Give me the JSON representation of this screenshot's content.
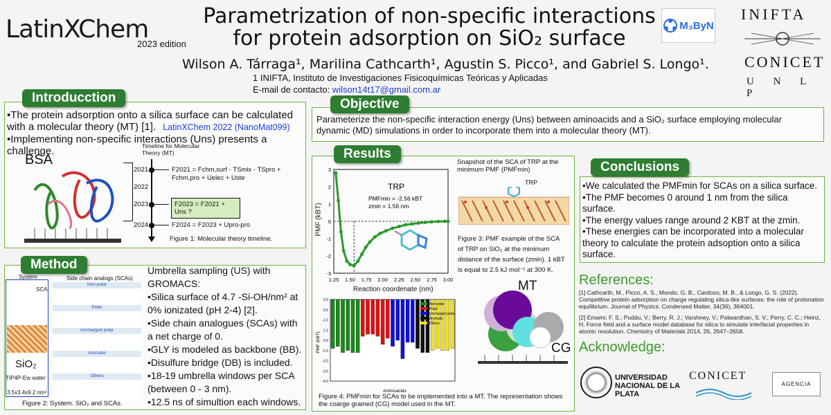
{
  "header": {
    "logo_text": "LatinXChem",
    "edition": "2023 edition",
    "title_line1": "Parametrization of non-specific interactions",
    "title_line2": "for protein adsorption on SiO₂ surface",
    "authors": "Wilson A. Tárraga¹, Marilina Cathcarth¹, Agustin S. Picco¹, and Gabriel S. Longo¹.",
    "affiliation": "1 INIFTA, Instituto de Investigaciones Fisicoquímicas Teóricas y Aplicadas",
    "contact_label": "E-mail de contacto:",
    "contact_email": "wilson14t17@gmail.com.ar",
    "m3byn_logo": "M₃ByN",
    "inifta_logo": "INIFTA",
    "conicet_logo": "CONICET",
    "unlp_logo": "U N L P"
  },
  "intro": {
    "tab": "Introducction",
    "bullet1": "•The protein adsorption onto a silica surface can be calculated with a molecular theory (MT) [1].",
    "link": "LatinXChem 2022 (NanoMat099)",
    "bullet2": "•Implementing non-specific interactions (Uns) presents a challenge.",
    "bsa_label": "BSA",
    "timeline_title": "Timeline for Molecular Theory (MT)",
    "years": [
      "2021",
      "2022",
      "2023",
      "2024"
    ],
    "eq2021": "F2021 = Fchm,surf - TSmix - TSpro + Fchm,pro + Uelec + Uste",
    "eq2023": "F2023 = F2021 + Uns ?",
    "eq2024": "F2024 = F2023 + Upro-pro",
    "caption": "Figure 1: Molecular theory timeline."
  },
  "objective": {
    "tab": "Objective",
    "text": "Parameterize the non-specific interaction energy (Uns) between aminoacids and a SiO₂ surface employing molecular dynamic (MD) simulations in order to incorporate them into a molecular theory (MT)."
  },
  "results": {
    "tab": "Results",
    "snapshot_caption": "Snapshot of the SCA of TRP at the minimum PMF (PMFmin)",
    "trp_label": "TRP",
    "fig3_caption": "Figure 3: PMF example of the SCA of TRP on SiO₂ at the minimum distance of the surface (zmin). 1 kBT is equal to 2.5 kJ mol⁻¹ at 300 K.",
    "mt_label": "MT",
    "cg_label": "CG",
    "fig4_caption": "Figure 4: PMFmin for SCAs to be implemented into a MT. The representation shows the coarge grained (CG) model used in the MT."
  },
  "pmf_chart": {
    "type": "line",
    "annotation_title": "TRP",
    "annotation_pmf": "PMFmin = -2.56 kBT",
    "annotation_z": "zmin = 1.56 nm",
    "xlabel": "Reaction coordenate (nm)",
    "ylabel": "PMF (kBT)",
    "xlim": [
      1.25,
      3.0
    ],
    "ylim": [
      -3,
      3
    ],
    "xticks": [
      "1.25",
      "1.50",
      "1.75",
      "2.00",
      "2.25",
      "2.50",
      "2.75",
      "3.00"
    ],
    "yticks": [
      "3",
      "2",
      "1",
      "0",
      "-1",
      "-2",
      "-3"
    ],
    "x": [
      1.28,
      1.32,
      1.36,
      1.4,
      1.45,
      1.5,
      1.56,
      1.62,
      1.68,
      1.74,
      1.8,
      1.88,
      1.96,
      2.05,
      2.15,
      2.25,
      2.35,
      2.45,
      2.55,
      2.65,
      2.75,
      2.85,
      2.95,
      3.0
    ],
    "y": [
      2.8,
      1.2,
      -0.6,
      -1.7,
      -2.3,
      -2.5,
      -2.56,
      -2.3,
      -1.9,
      -1.5,
      -1.2,
      -0.9,
      -0.7,
      -0.55,
      -0.4,
      -0.3,
      -0.2,
      -0.15,
      -0.1,
      -0.06,
      -0.03,
      -0.01,
      0.0,
      0.0
    ]
  },
  "bar_chart": {
    "type": "bar",
    "xlabel": "Aminoacids",
    "ylabel": "PMF (kBT)",
    "ylim": [
      -4.0,
      0.0
    ],
    "yticks": [
      "-4.0",
      "-3.5",
      "-3.0",
      "-2.5",
      "-2.0",
      "-1.5",
      "-1.0",
      "-0.5",
      "0.0"
    ],
    "legend": [
      {
        "name": "Non-polar",
        "color": "#1a8a1a"
      },
      {
        "name": "Polar",
        "color": "#e01010"
      },
      {
        "name": "Uncharged polar",
        "color": "#1010e0"
      },
      {
        "name": "Aromatic",
        "color": "#111111"
      },
      {
        "name": "Others",
        "color": "#f0e020"
      }
    ],
    "values": [
      -2.4,
      -2.3,
      -2.6,
      -2.5,
      -2.6,
      -2.6,
      -1.8,
      -1.7,
      -1.7,
      -1.8,
      -2.2,
      -1.9,
      -2.3,
      -2.0,
      -2.9,
      -2.1,
      -2.1,
      -2.4,
      -2.6,
      -2.6,
      -2.5,
      -2.4,
      -2.5,
      -2.5,
      -2.4
    ],
    "colors": [
      "#1a8a1a",
      "#1a8a1a",
      "#1a8a1a",
      "#1a8a1a",
      "#1a8a1a",
      "#1a8a1a",
      "#e01010",
      "#e01010",
      "#e01010",
      "#e01010",
      "#e01010",
      "#e01010",
      "#1010e0",
      "#1010e0",
      "#1010e0",
      "#1010e0",
      "#1010e0",
      "#111111",
      "#111111",
      "#111111",
      "#f0e020",
      "#f0e020",
      "#f0e020",
      "#f0e020",
      "#f0e020"
    ]
  },
  "method": {
    "tab": "Method",
    "system_label": "System",
    "sca_label": "SCA",
    "analogs_title": "Side chain analogs (SCAs)",
    "groups": [
      "Non-polar",
      "Polar",
      "Uncharged polar",
      "Aromatic",
      "Others"
    ],
    "sio2_label": "SiO₂",
    "water_label": "TIP4P-Ew water",
    "box_label": "3.5x3.4x9.2 nm³",
    "caption": "Figure 2: System. SiO₂ and SCAs.",
    "text": [
      "Umbrella sampling (US) with GROMACS:",
      "•Silica surface of 4.7 -Si-OH/nm² at 0% ionizated (pH 2-4) [2].",
      "•Side chain analogues (SCAs) with a net charge of 0.",
      "•GLY is modeled as backbone (BB).",
      "•Disulfure bridge (DB) is included.",
      "•18-19 umbrella windows per SCA (between 0 - 3 nm).",
      "•12.5 ns of simultion each windows."
    ]
  },
  "conclusions": {
    "tab": "Conclusions",
    "items": [
      "•We calculated the PMFmin for SCAs on a  silica surface.",
      "•The PMF becomes 0 around 1 nm from the silica surface.",
      "•The energy values range around 2 KBT at the zmin.",
      "•These energies can be incorporated into a molecular theory to calculate the protein adsoption onto a silica surface."
    ]
  },
  "references": {
    "title": "References:",
    "ref1": "[1] Cathcarth, M., Picco, A. S., Mondo, G. B., Cardoso, M. B., & Longo, G. S. (2022). Competitive protein adsorption on charge regulating silica-like surfaces: the role of protonation equilibrium. Journal of Physics: Condensed Matter, 34(36), 364001.",
    "ref2": "[2] Emami, F. S.; Puddu, V.; Berry, R. J.; Varshney, V.; Patwardhan, S. V.; Perry, C. C.; Heinz, H. Force field and a surface model database for silica to simulate interfacial properties in atomic resolution. Chemistry of Materials 2014, 26, 2647–2658."
  },
  "acknowledge": {
    "title": "Acknowledge:",
    "unlp": "UNIVERSIDAD NACIONAL DE LA PLATA",
    "conicet": "CONICET",
    "agencia": "AGENCIA"
  },
  "colors": {
    "accent_green": "#2e7d32",
    "border_green": "#6cb33f",
    "link_blue": "#1a3fd6",
    "ref_title_green": "#3a9a2a"
  }
}
